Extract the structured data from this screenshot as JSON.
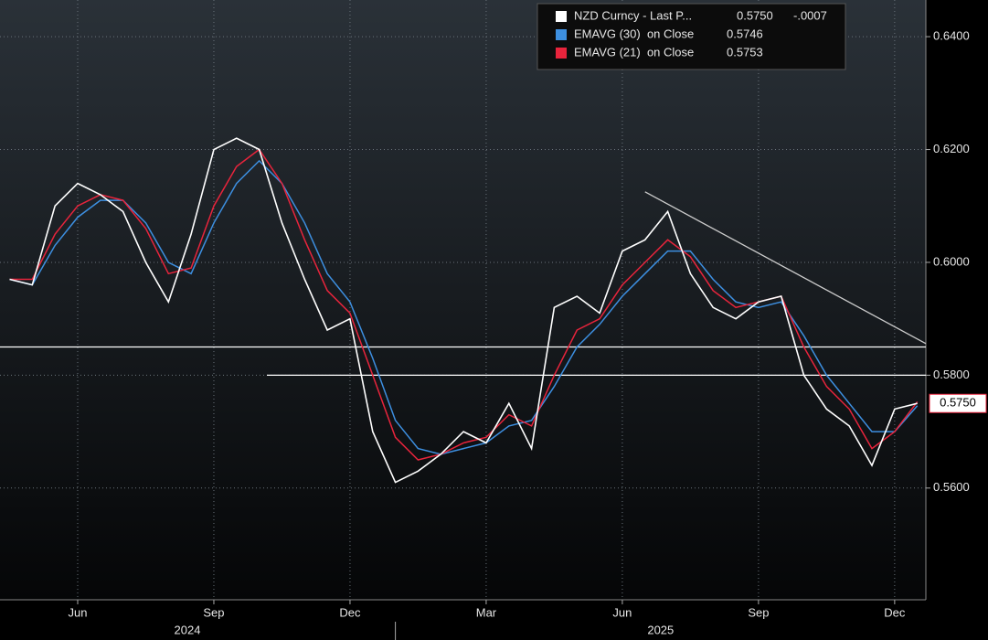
{
  "chart_data": {
    "type": "line",
    "categories": [
      null,
      null,
      null,
      "Jun",
      null,
      null,
      null,
      null,
      null,
      "Sep",
      null,
      null,
      null,
      null,
      null,
      "Dec",
      null,
      null,
      null,
      null,
      null,
      "Mar",
      null,
      null,
      null,
      null,
      null,
      "Jun",
      null,
      null,
      null,
      null,
      null,
      "Sep",
      null,
      null,
      null,
      null,
      null,
      "Dec",
      null
    ],
    "years": [
      "2024",
      "2025"
    ],
    "series": [
      {
        "name": "NZD Curncy - Last P...",
        "color": "#ffffff",
        "legend_value": "0.5750",
        "change": "-.0007",
        "values": [
          0.597,
          0.596,
          0.61,
          0.614,
          0.612,
          0.609,
          0.6,
          0.593,
          0.605,
          0.62,
          0.622,
          0.62,
          0.607,
          0.597,
          0.588,
          0.59,
          0.57,
          0.561,
          0.563,
          0.566,
          0.57,
          0.568,
          0.575,
          0.567,
          0.592,
          0.594,
          0.591,
          0.602,
          0.604,
          0.609,
          0.598,
          0.592,
          0.59,
          0.593,
          0.594,
          0.58,
          0.574,
          0.571,
          0.564,
          0.574,
          0.575
        ]
      },
      {
        "name": "EMAVG (30)  on Close",
        "color": "#3d8fe0",
        "legend_value": "0.5746",
        "values": [
          0.597,
          0.596,
          0.603,
          0.608,
          0.611,
          0.611,
          0.607,
          0.6,
          0.598,
          0.607,
          0.614,
          0.618,
          0.614,
          0.607,
          0.598,
          0.593,
          0.583,
          0.572,
          0.567,
          0.566,
          0.567,
          0.568,
          0.571,
          0.572,
          0.578,
          0.585,
          0.589,
          0.594,
          0.598,
          0.602,
          0.602,
          0.597,
          0.593,
          0.592,
          0.593,
          0.587,
          0.58,
          0.575,
          0.57,
          0.57,
          0.5746
        ]
      },
      {
        "name": "EMAVG (21)  on Close",
        "color": "#e8243c",
        "legend_value": "0.5753",
        "values": [
          0.597,
          0.597,
          0.605,
          0.61,
          0.612,
          0.611,
          0.606,
          0.598,
          0.599,
          0.61,
          0.617,
          0.62,
          0.614,
          0.604,
          0.595,
          0.591,
          0.58,
          0.569,
          0.565,
          0.566,
          0.568,
          0.569,
          0.573,
          0.571,
          0.58,
          0.588,
          0.59,
          0.596,
          0.6,
          0.604,
          0.601,
          0.595,
          0.592,
          0.593,
          0.594,
          0.585,
          0.578,
          0.574,
          0.567,
          0.57,
          0.5753
        ]
      }
    ],
    "hlines": [
      0.585,
      0.58
    ],
    "trendline": [
      0.6125,
      0.5856
    ],
    "ylim": [
      0.5402,
      0.6465
    ],
    "yticks": [
      {
        "value": 0.56,
        "label": "0.5600"
      },
      {
        "value": 0.58,
        "label": "0.5800"
      },
      {
        "value": 0.6,
        "label": "0.6000"
      },
      {
        "value": 0.62,
        "label": "0.6200"
      },
      {
        "value": 0.64,
        "label": "0.6400"
      }
    ],
    "grid": true
  }
}
